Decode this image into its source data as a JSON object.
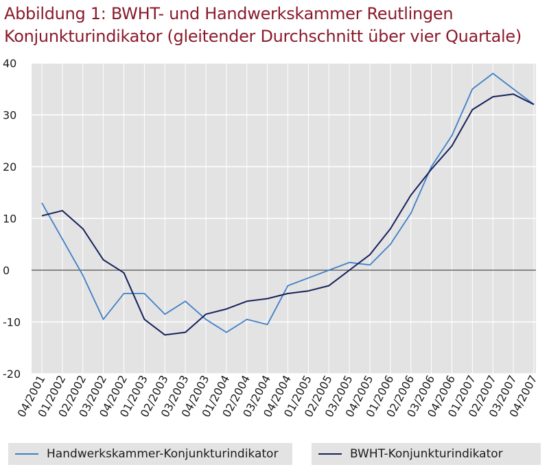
{
  "title": {
    "line1": "Abbildung 1: BWHT- und Handwerkskammer  Reutlingen",
    "line2": "Konjunkturindikator (gleitender Durchschnitt über vier Quartale)"
  },
  "colors": {
    "title": "#8a1a2b",
    "plot_background": "#e3e3e3",
    "grid": "#ffffff",
    "zero_line": "#666666",
    "handwerkskammer": "#3f7fc8",
    "bwht": "#15205a"
  },
  "chart_data": {
    "type": "line",
    "categories": [
      "04/2001",
      "01/2002",
      "02/2002",
      "03/2002",
      "04/2002",
      "01/2003",
      "02/2003",
      "03/2003",
      "04/2003",
      "01/2004",
      "02/2004",
      "03/2004",
      "04/2004",
      "01/2005",
      "02/2005",
      "03/2005",
      "04/2005",
      "01/2006",
      "02/2006",
      "03/2006",
      "04/2006",
      "01/2007",
      "02/2007",
      "03/2007",
      "04/2007"
    ],
    "y_ticks": [
      "40",
      "30",
      "20",
      "10",
      "0",
      "-10",
      "-20"
    ],
    "ylim": [
      -20,
      40
    ],
    "grid": true,
    "legend_position": "bottom",
    "series": [
      {
        "name": "Handwerkskammer-Konjunkturindikator",
        "color": "#3f7fc8",
        "values": [
          13,
          6,
          -1,
          -9.5,
          -4.5,
          -4.5,
          -8.5,
          -6,
          -9.5,
          -12,
          -9.5,
          -10.5,
          -3,
          -1.5,
          0,
          1.5,
          1,
          5,
          11,
          20,
          26,
          35,
          38,
          35,
          32
        ]
      },
      {
        "name": "BWHT-Konjunkturindikator",
        "color": "#15205a",
        "values": [
          10.5,
          11.5,
          8,
          2,
          -0.5,
          -9.5,
          -12.5,
          -12,
          -8.5,
          -7.5,
          -6,
          -5.5,
          -4.5,
          -4,
          -3,
          0,
          3,
          8,
          14.5,
          19.5,
          24,
          31,
          33.5,
          34,
          32
        ]
      }
    ]
  }
}
